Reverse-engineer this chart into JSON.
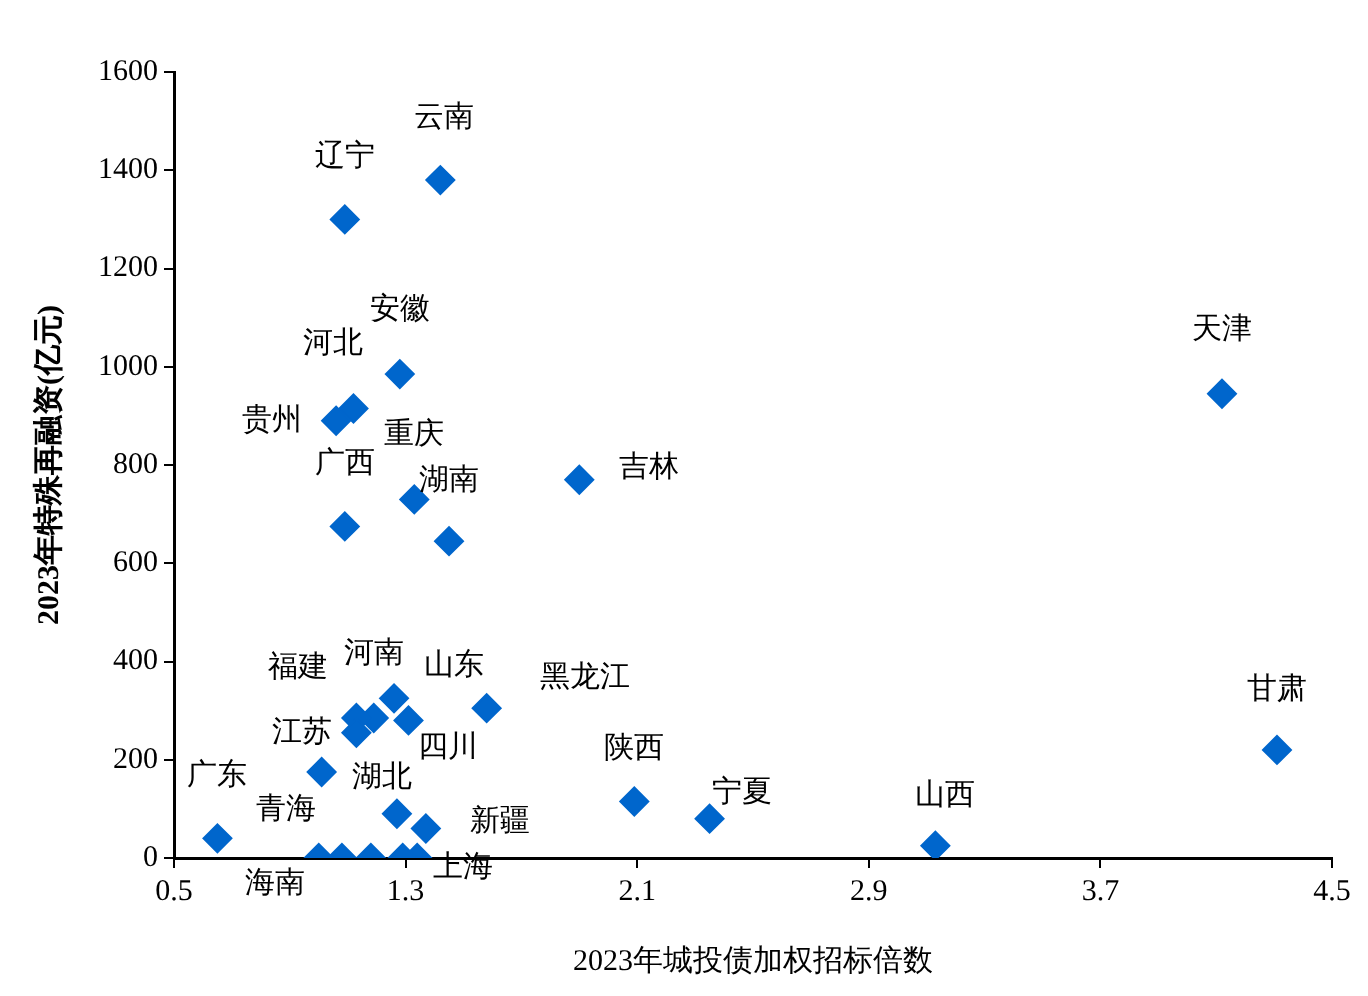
{
  "chart_data": {
    "type": "scatter",
    "xlabel": "2023年城投债加权招标倍数",
    "ylabel": "2023年特殊再融资(亿元)",
    "xlim": [
      0.5,
      4.5
    ],
    "xticks": [
      0.5,
      1.3,
      2.1,
      2.9,
      3.7,
      4.5
    ],
    "ylim": [
      0,
      1600
    ],
    "yticks": [
      0,
      200,
      400,
      600,
      800,
      1000,
      1200,
      1400,
      1600
    ],
    "grid": false,
    "legend": false,
    "marker": "diamond",
    "series": [
      {
        "color": "#0066cc",
        "x": [
          1.09,
          1.42,
          1.28,
          1.12,
          1.06,
          1.33,
          1.09,
          1.45,
          1.9,
          4.12,
          4.31,
          2.09,
          2.35,
          3.13,
          1.58,
          1.26,
          1.31,
          1.19,
          1.13,
          1.13,
          1.01,
          0.65,
          1.08,
          1.0,
          1.34,
          1.37,
          1.18,
          1.29,
          1.27
        ],
        "values": [
          1300,
          1380,
          985,
          915,
          890,
          730,
          675,
          645,
          770,
          945,
          220,
          115,
          80,
          25,
          305,
          325,
          280,
          285,
          285,
          255,
          175,
          40,
          0,
          0,
          0,
          60,
          0,
          0,
          90
        ]
      }
    ],
    "annotations": [
      {
        "text": "辽宁",
        "x": 1.09,
        "y": 1300
      },
      {
        "text": "云南",
        "x": 1.42,
        "y": 1380
      },
      {
        "text": "安徽",
        "x": 1.28,
        "y": 985
      },
      {
        "text": "河北",
        "x": 1.12,
        "y": 915
      },
      {
        "text": "贵州",
        "x": 1.06,
        "y": 890
      },
      {
        "text": "重庆",
        "x": 1.33,
        "y": 730
      },
      {
        "text": "广西",
        "x": 1.09,
        "y": 675
      },
      {
        "text": "湖南",
        "x": 1.45,
        "y": 645
      },
      {
        "text": "吉林",
        "x": 1.9,
        "y": 770
      },
      {
        "text": "天津",
        "x": 4.12,
        "y": 945
      },
      {
        "text": "甘肃",
        "x": 4.31,
        "y": 220
      },
      {
        "text": "陕西",
        "x": 2.09,
        "y": 115
      },
      {
        "text": "宁夏",
        "x": 2.35,
        "y": 80
      },
      {
        "text": "山西",
        "x": 3.13,
        "y": 25
      },
      {
        "text": "黑龙江",
        "x": 1.58,
        "y": 305
      },
      {
        "text": "山东",
        "x": 1.26,
        "y": 325
      },
      {
        "text": "四川",
        "x": 1.31,
        "y": 280
      },
      {
        "text": "河南",
        "x": 1.19,
        "y": 285
      },
      {
        "text": "福建",
        "x": 1.13,
        "y": 285
      },
      {
        "text": "江苏",
        "x": 1.13,
        "y": 255
      },
      {
        "text": "湖北",
        "x": 1.01,
        "y": 175
      },
      {
        "text": "广东",
        "x": 0.65,
        "y": 40
      },
      {
        "text": "青海",
        "x": 1.08,
        "y": 0
      },
      {
        "text": "海南",
        "x": 1.0,
        "y": 0
      },
      {
        "text": "上海",
        "x": 1.34,
        "y": 0
      },
      {
        "text": "新疆",
        "x": 1.37,
        "y": 60
      }
    ]
  }
}
